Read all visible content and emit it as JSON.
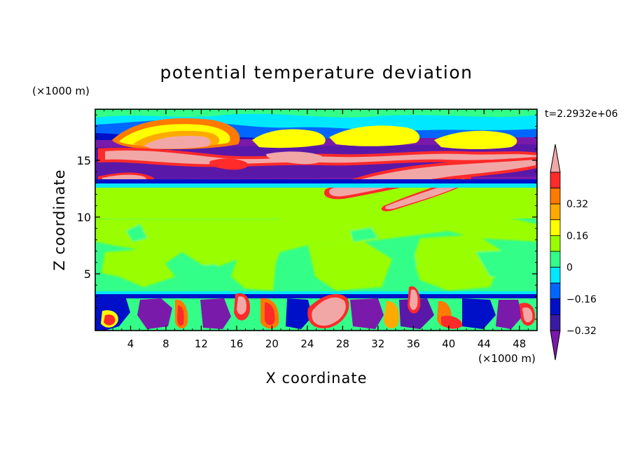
{
  "chart_data": {
    "type": "heatmap",
    "title": "potential temperature deviation",
    "xlabel": "X coordinate",
    "ylabel": "Z coordinate",
    "x_unit": "(×1000 m)",
    "y_unit": "(×1000 m)",
    "time_label": "t=2.2932e+06",
    "xlim": [
      0,
      50
    ],
    "ylim": [
      0,
      19.5
    ],
    "x_ticks": [
      4,
      8,
      12,
      16,
      20,
      24,
      28,
      32,
      36,
      40,
      44,
      48
    ],
    "y_ticks": [
      5,
      10,
      15
    ],
    "colorbar": {
      "levels": [
        {
          "color": "#f2a7a7",
          "label": ""
        },
        {
          "color": "#ff2a2a",
          "label": ""
        },
        {
          "color": "#ff7a00",
          "label": "0.32"
        },
        {
          "color": "#ffaa00",
          "label": ""
        },
        {
          "color": "#ffff00",
          "label": "0.16"
        },
        {
          "color": "#99ff00",
          "label": ""
        },
        {
          "color": "#33ff88",
          "label": "0"
        },
        {
          "color": "#00e8ff",
          "label": ""
        },
        {
          "color": "#0066ff",
          "label": "−0.16"
        },
        {
          "color": "#0010c8",
          "label": ""
        },
        {
          "color": "#3a1aa0",
          "label": "−0.32"
        },
        {
          "color": "#7a1aaa",
          "label": ""
        }
      ]
    },
    "regions": [
      {
        "zmin": 0.0,
        "zmax": 3.5,
        "value": "mixed",
        "color": "#33ff88"
      },
      {
        "zmin": 3.5,
        "zmax": 11.5,
        "value": 0,
        "color": "#33ff88"
      },
      {
        "zmin": 11.5,
        "zmax": 13.0,
        "value": 0.05,
        "color": "#99ff00"
      },
      {
        "zmin": 13.0,
        "zmax": 19.5,
        "value": "mixed",
        "color": "#7a1aaa"
      }
    ]
  }
}
